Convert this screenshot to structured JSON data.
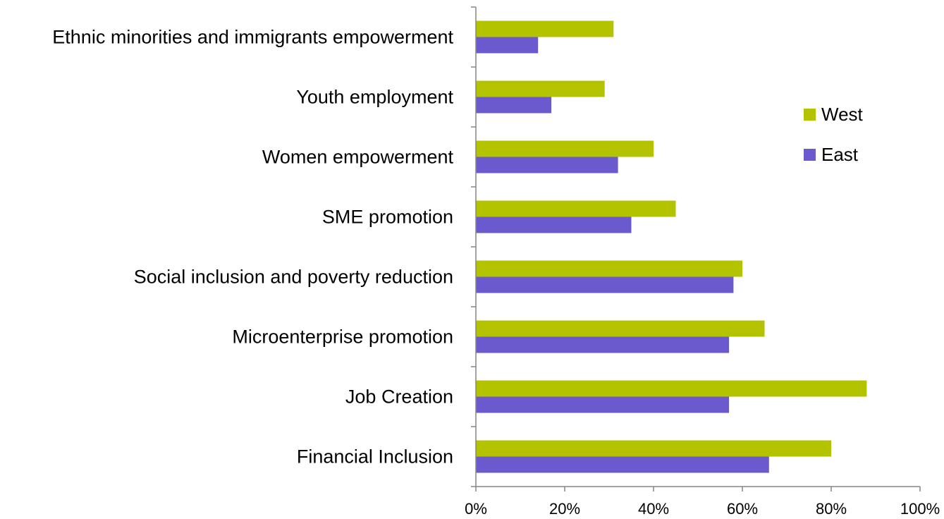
{
  "chart_data": {
    "type": "bar",
    "orientation": "horizontal",
    "categories": [
      "Ethnic minorities and immigrants empowerment",
      "Youth employment",
      "Women empowerment",
      "SME promotion",
      "Social inclusion and poverty reduction",
      "Microenterprise promotion",
      "Job Creation",
      "Financial Inclusion"
    ],
    "series": [
      {
        "name": "West",
        "color": "#B4C300",
        "values": [
          31,
          29,
          40,
          45,
          60,
          65,
          88,
          80
        ]
      },
      {
        "name": "East",
        "color": "#6A5ACD",
        "values": [
          14,
          17,
          32,
          35,
          58,
          57,
          57,
          66
        ]
      }
    ],
    "xlim": [
      0,
      100
    ],
    "x_ticks": [
      "0%",
      "20%",
      "40%",
      "60%",
      "80%",
      "100%"
    ],
    "gridlines": false,
    "legend_position": "right"
  }
}
